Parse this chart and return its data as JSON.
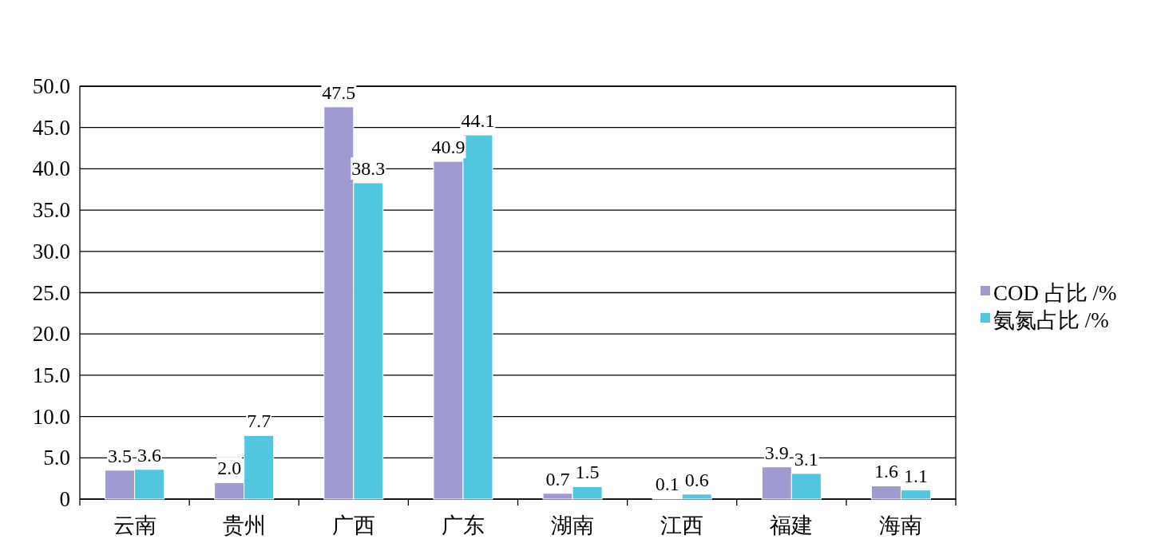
{
  "chart_data": {
    "type": "bar",
    "categories": [
      "云南",
      "贵州",
      "广西",
      "广东",
      "湖南",
      "江西",
      "福建",
      "海南"
    ],
    "series": [
      {
        "name": "COD 占比 /%",
        "color": "#9f9bd0",
        "values": [
          3.5,
          2.0,
          47.5,
          40.9,
          0.7,
          0.1,
          3.9,
          1.6
        ],
        "value_labels": [
          "3.5",
          "2.0",
          "47.5",
          "40.9",
          "0.7",
          "0.1",
          "3.9",
          "1.6"
        ]
      },
      {
        "name": "氨氮占比 /%",
        "color": "#52c5df",
        "values": [
          3.6,
          7.7,
          38.3,
          44.1,
          1.5,
          0.6,
          3.1,
          1.1
        ],
        "value_labels": [
          "3.6",
          "7.7",
          "38.3",
          "44.1",
          "1.5",
          "0.6",
          "3.1",
          "1.1"
        ]
      }
    ],
    "ylim": [
      0,
      50
    ],
    "yticks": [
      0,
      {
        "value": 5,
        "label": "5.0"
      },
      {
        "value": 10,
        "label": "10.0"
      },
      {
        "value": 15,
        "label": "15.0"
      },
      {
        "value": 20,
        "label": "20.0"
      },
      {
        "value": 25,
        "label": "25.0"
      },
      {
        "value": 30,
        "label": "30.0"
      },
      {
        "value": 35,
        "label": "35.0"
      },
      {
        "value": 40,
        "label": "40.0"
      },
      {
        "value": 45,
        "label": "45.0"
      },
      {
        "value": 50,
        "label": "50.0"
      }
    ],
    "grid": "y",
    "legend": "right"
  }
}
